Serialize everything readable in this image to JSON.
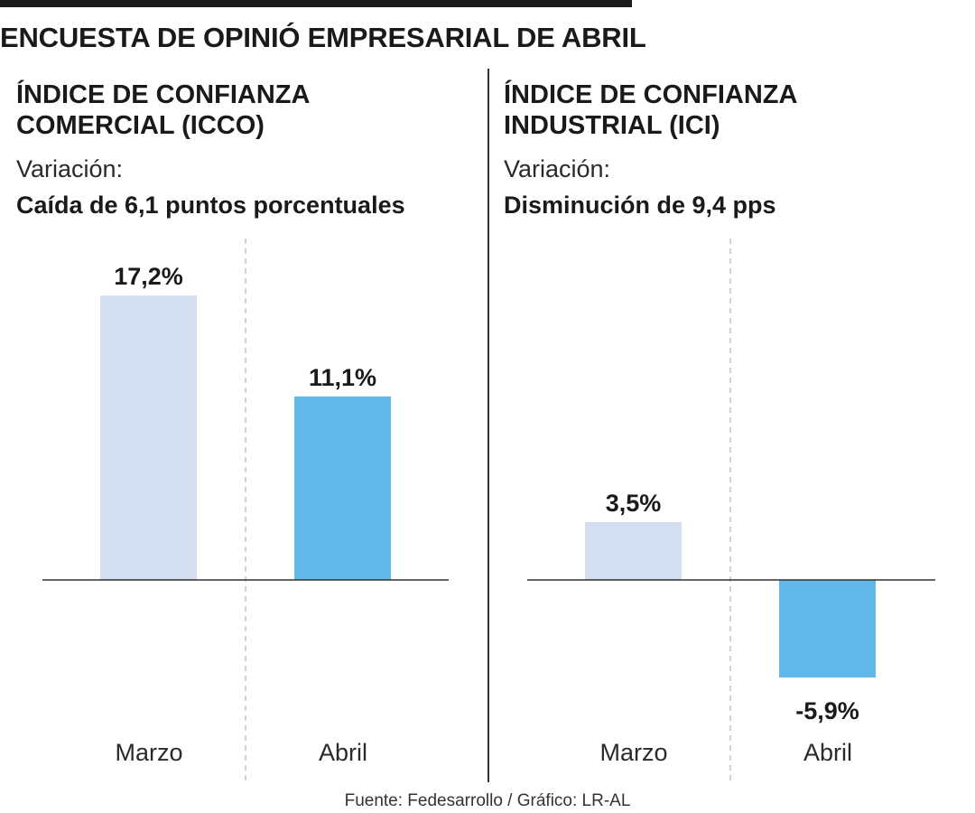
{
  "title": "ENCUESTA DE OPINIÓ EMPRESARIAL DE ABRIL",
  "variation_label": "Variación:",
  "source": "Fuente: Fedesarrollo / Gráfico: LR-AL",
  "colors": {
    "previous": "#d3dff1",
    "current": "#62b8e8",
    "text": "#1a1a1a"
  },
  "chart_data": [
    {
      "type": "bar",
      "title": "ÍNDICE DE CONFIANZA\nCOMERCIAL (ICCO)",
      "variation": "Caída de 6,1 puntos porcentuales",
      "categories": [
        "Marzo",
        "Abril"
      ],
      "values": [
        17.2,
        11.1
      ],
      "value_labels": [
        "17,2%",
        "11,1%"
      ],
      "unit": "%",
      "ylim": [
        -7,
        20
      ]
    },
    {
      "type": "bar",
      "title": "ÍNDICE DE CONFIANZA\nINDUSTRIAL (ICI)",
      "variation": "Disminución de 9,4 pps",
      "categories": [
        "Marzo",
        "Abril"
      ],
      "values": [
        3.5,
        -5.9
      ],
      "value_labels": [
        "3,5%",
        "-5,9%"
      ],
      "unit": "%",
      "ylim": [
        -7,
        20
      ]
    }
  ]
}
